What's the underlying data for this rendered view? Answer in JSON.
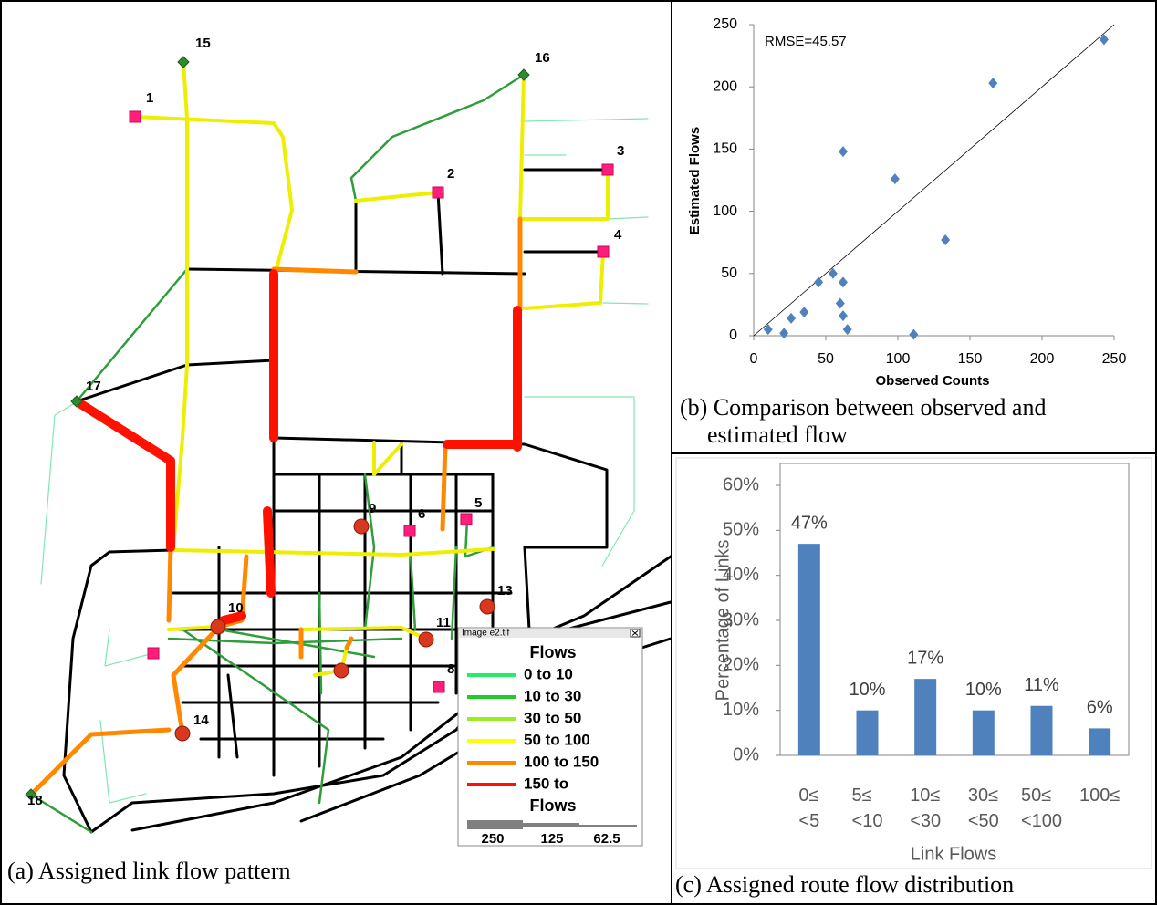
{
  "map": {
    "nodes": [
      "15",
      "16",
      "1",
      "2",
      "3",
      "4",
      "17",
      "5",
      "6",
      "9",
      "13",
      "10",
      "11",
      "8",
      "14",
      "18"
    ],
    "legend": {
      "window_title": "Image e2.tif",
      "title": "Flows",
      "items": [
        {
          "label": "0 to 10",
          "color": "#22ee66"
        },
        {
          "label": "10 to 30",
          "color": "#22cc22"
        },
        {
          "label": "30 to 50",
          "color": "#99ee22"
        },
        {
          "label": "50 to 100",
          "color": "#ffff00"
        },
        {
          "label": "100 to 150",
          "color": "#ff8800"
        },
        {
          "label": "150 to",
          "color": "#ff1100"
        }
      ],
      "size_title": "Flows",
      "size_labels": [
        "250",
        "125",
        "62.5"
      ]
    },
    "caption": "(a) Assigned link flow pattern"
  },
  "chart_data": [
    {
      "type": "scatter",
      "annotation": "RMSE=45.57",
      "x_label": "Observed Counts",
      "y_label": "Estimated Flows",
      "caption": "(b) Comparison between observed and estimated flow",
      "color": "#4f81bd",
      "x": [
        243,
        166,
        62,
        98,
        133,
        55,
        45,
        62,
        60,
        62,
        65,
        35,
        26,
        21,
        10,
        111
      ],
      "values": [
        238,
        203,
        148,
        126,
        77,
        50,
        43,
        43,
        26,
        16,
        5,
        19,
        14,
        2,
        5,
        1
      ],
      "xlim": [
        0,
        250
      ],
      "xticks": [
        0,
        50,
        100,
        150,
        200,
        250
      ],
      "ylim": [
        0,
        250
      ],
      "yticks": [
        0,
        50,
        100,
        150,
        200,
        250
      ]
    },
    {
      "type": "bar",
      "x_label": "Link Flows",
      "y_label": "Percentage of Links",
      "caption": "(c) Assigned route flow distribution",
      "color": "#4f81bd",
      "categories": [
        "0≤ <5",
        "5≤ <10",
        "10≤ <30",
        "30≤ <50",
        "50≤ <100",
        "100≤"
      ],
      "values": [
        47,
        10,
        17,
        10,
        11,
        6
      ],
      "value_labels": [
        "47%",
        "10%",
        "17%",
        "10%",
        "11%",
        "6%"
      ],
      "ylim": [
        0,
        60
      ],
      "yticks": [
        {
          "value": 0,
          "label": "0%"
        },
        {
          "value": 10,
          "label": "10%"
        },
        {
          "value": 20,
          "label": "20%"
        },
        {
          "value": 30,
          "label": "30%"
        },
        {
          "value": 40,
          "label": "40%"
        },
        {
          "value": 50,
          "label": "50%"
        },
        {
          "value": 60,
          "label": "60%"
        }
      ]
    }
  ]
}
